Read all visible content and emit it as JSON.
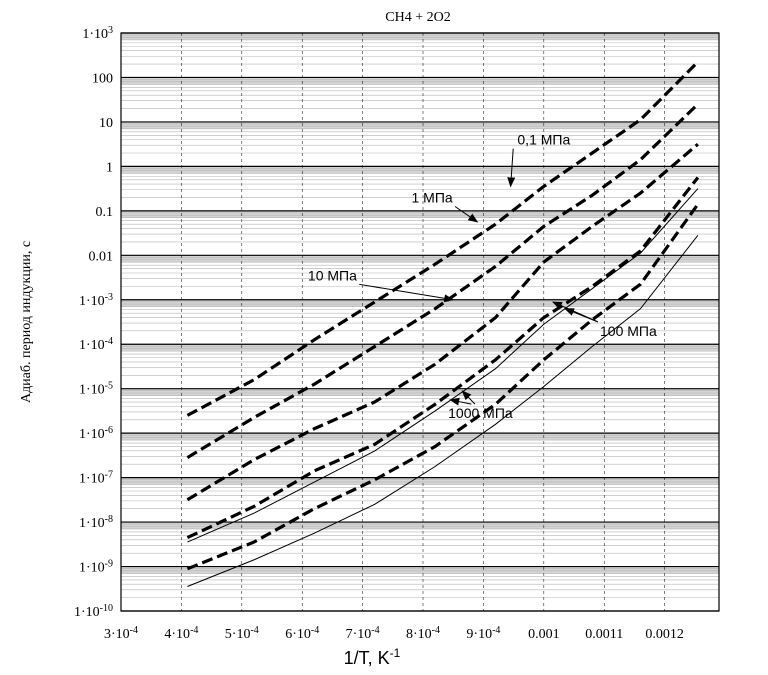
{
  "chart_data": {
    "type": "line",
    "title": "CH4 + 2O2",
    "xlabel": {
      "base": "1/T, K",
      "exponent": "-1"
    },
    "ylabel": "Адиаб. период индукции, с",
    "xlim": [
      0.0003,
      0.00129
    ],
    "ylim_log10": [
      -10,
      3
    ],
    "y_scale": "log",
    "grid": true,
    "x_ticks": [
      {
        "value": 0.0003,
        "mant": "3",
        "exp": "-4"
      },
      {
        "value": 0.0004,
        "mant": "4",
        "exp": "-4"
      },
      {
        "value": 0.0005,
        "mant": "5",
        "exp": "-4"
      },
      {
        "value": 0.0006,
        "mant": "6",
        "exp": "-4"
      },
      {
        "value": 0.0007,
        "mant": "7",
        "exp": "-4"
      },
      {
        "value": 0.0008,
        "mant": "8",
        "exp": "-4"
      },
      {
        "value": 0.0009,
        "mant": "9",
        "exp": "-4"
      },
      {
        "value": 0.001,
        "label": "0.001"
      },
      {
        "value": 0.0011,
        "label": "0.0011"
      },
      {
        "value": 0.0012,
        "label": "0.0012"
      }
    ],
    "y_ticks": [
      {
        "exp10": 3,
        "style": "pow",
        "pow": "3"
      },
      {
        "exp10": 2,
        "style": "plain",
        "label": "100"
      },
      {
        "exp10": 1,
        "style": "plain",
        "label": "10"
      },
      {
        "exp10": 0,
        "style": "plain",
        "label": "1"
      },
      {
        "exp10": -1,
        "style": "plain",
        "label": "0.1"
      },
      {
        "exp10": -2,
        "style": "plain",
        "label": "0.01"
      },
      {
        "exp10": -3,
        "style": "pow",
        "pow": "-3"
      },
      {
        "exp10": -4,
        "style": "pow",
        "pow": "-4"
      },
      {
        "exp10": -5,
        "style": "pow",
        "pow": "-5"
      },
      {
        "exp10": -6,
        "style": "pow",
        "pow": "-6"
      },
      {
        "exp10": -7,
        "style": "pow",
        "pow": "-7"
      },
      {
        "exp10": -8,
        "style": "pow",
        "pow": "-8"
      },
      {
        "exp10": -9,
        "style": "pow",
        "pow": "-9"
      },
      {
        "exp10": -10,
        "style": "pow",
        "pow": "-10"
      }
    ],
    "series": [
      {
        "style": "dashed",
        "x": [
          0.00041,
          0.00052,
          0.00062,
          0.00072,
          0.00082,
          0.00092,
          0.001,
          0.00108,
          0.00116,
          0.001255
        ],
        "log10y": [
          -5.6,
          -4.8,
          -3.9,
          -3.05,
          -2.2,
          -1.3,
          -0.45,
          0.3,
          1.05,
          2.35
        ]
      },
      {
        "style": "dashed",
        "x": [
          0.00041,
          0.00052,
          0.00062,
          0.00072,
          0.00082,
          0.00092,
          0.001,
          0.00108,
          0.00116,
          0.001255
        ],
        "log10y": [
          -6.55,
          -5.65,
          -4.9,
          -4.05,
          -3.2,
          -2.25,
          -1.35,
          -0.65,
          0.15,
          1.4
        ]
      },
      {
        "style": "dashed",
        "x": [
          0.00041,
          0.00052,
          0.00062,
          0.00072,
          0.00082,
          0.00092,
          0.001,
          0.00108,
          0.00116,
          0.001255
        ],
        "log10y": [
          -7.5,
          -6.6,
          -5.9,
          -5.3,
          -4.45,
          -3.4,
          -2.15,
          -1.35,
          -0.6,
          0.5
        ]
      },
      {
        "style": "dashed",
        "x": [
          0.00041,
          0.00052,
          0.00062,
          0.00072,
          0.00082,
          0.00092,
          0.001,
          0.00108,
          0.00116,
          0.001255
        ],
        "log10y": [
          -8.35,
          -7.65,
          -6.85,
          -6.25,
          -5.35,
          -4.35,
          -3.4,
          -2.7,
          -1.9,
          -0.25
        ]
      },
      {
        "style": "thin",
        "x": [
          0.00041,
          0.00052,
          0.00062,
          0.00072,
          0.00082,
          0.00092,
          0.001,
          0.00108,
          0.00116,
          0.001255
        ],
        "log10y": [
          -8.45,
          -7.8,
          -7.1,
          -6.4,
          -5.5,
          -4.55,
          -3.55,
          -2.75,
          -1.95,
          -0.5
        ]
      },
      {
        "style": "dashed",
        "x": [
          0.00041,
          0.00052,
          0.00062,
          0.00072,
          0.00082,
          0.00092,
          0.001,
          0.00108,
          0.00116,
          0.001255
        ],
        "log10y": [
          -9.05,
          -8.45,
          -7.7,
          -7.05,
          -6.3,
          -5.35,
          -4.35,
          -3.45,
          -2.65,
          -0.85
        ]
      },
      {
        "style": "thin",
        "x": [
          0.00041,
          0.00052,
          0.00062,
          0.00072,
          0.00082,
          0.00092,
          0.001,
          0.00108,
          0.00116,
          0.001255
        ],
        "log10y": [
          -9.45,
          -8.85,
          -8.25,
          -7.6,
          -6.75,
          -5.8,
          -4.95,
          -4.05,
          -3.2,
          -1.55
        ]
      }
    ],
    "annotations": [
      {
        "text": "0,1 МПа",
        "tx": 0.001,
        "tly": 0.6,
        "arrows": [
          [
            0.000945,
            -0.45
          ]
        ]
      },
      {
        "text": "1 МПа",
        "tx": 0.000815,
        "tly": -0.7,
        "arrows": [
          [
            0.00089,
            -1.25
          ]
        ]
      },
      {
        "text": "10 МПа",
        "tx": 0.00065,
        "tly": -2.45,
        "arrows": [
          [
            0.00085,
            -3.0
          ]
        ]
      },
      {
        "text": "100 МПа",
        "tx": 0.00114,
        "tly": -3.7,
        "arrows": [
          [
            0.001015,
            -3.05
          ],
          [
            0.001035,
            -3.2
          ]
        ]
      },
      {
        "text": "1000 МПа",
        "tx": 0.000895,
        "tly": -5.55,
        "arrows": [
          [
            0.000845,
            -5.25
          ],
          [
            0.000865,
            -5.05
          ]
        ]
      }
    ]
  }
}
